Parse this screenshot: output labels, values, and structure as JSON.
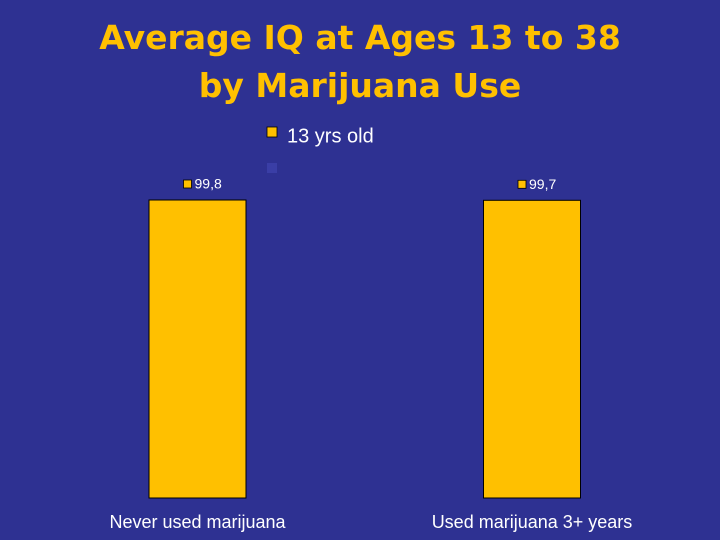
{
  "chart_data": {
    "type": "bar",
    "title": "Average IQ at Ages 13 to 38 by Marijuana Use",
    "categories": [
      "Never used marijuana",
      "Used marijuana 3+ years"
    ],
    "series": [
      {
        "name": "13 yrs old",
        "color": "#ffc000",
        "values": [
          99.8,
          99.7
        ],
        "value_labels": [
          "99,8",
          "99,7"
        ]
      }
    ],
    "ylim": [
      0,
      100
    ],
    "legend": "top"
  }
}
